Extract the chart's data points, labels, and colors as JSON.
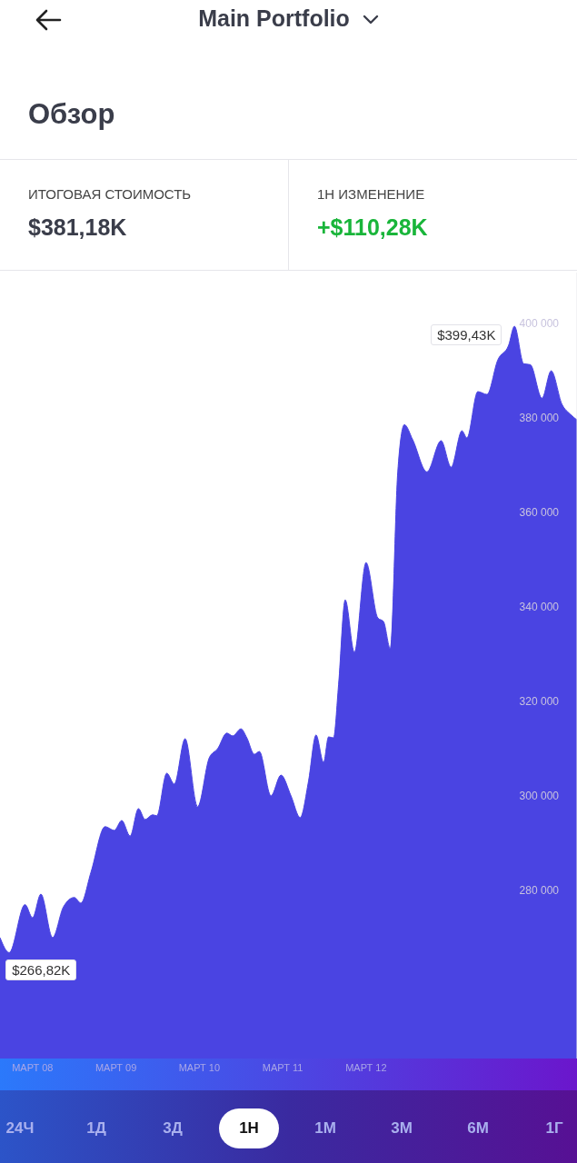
{
  "chart_data": {
    "type": "area",
    "title": "Main Portfolio",
    "subtitle": "Обзор",
    "annotations": [
      "ИТОГОВАЯ СТОИМОСТЬ",
      "$381,18K",
      "1Н ИЗМЕНЕНИЕ",
      "+$110,28K",
      "24Ч",
      "1Д",
      "3Д",
      "1Н",
      "1М",
      "3М",
      "6М",
      "1Г",
      {
        "text": "$399,43K",
        "x": "--03-13T18:43",
        "y": 399430
      },
      {
        "text": "$266,82K",
        "x": "--03-07T17:17",
        "y": 266820
      }
    ],
    "x": [
      "--03-07T14:38",
      "--03-07T17:17",
      "--03-07T21:50",
      "--03-08T00:00",
      "--03-08T02:24",
      "--03-08T05:46",
      "--03-08T08:53",
      "--03-08T12:00",
      "--03-08T13:55",
      "--03-08T16:48",
      "--03-08T20:53",
      "--03-08T23:31",
      "--03-09T01:41",
      "--03-09T04:05",
      "--03-09T06:29",
      "--03-09T08:24",
      "--03-09T10:34",
      "--03-09T11:46",
      "--03-09T14:38",
      "--03-09T16:48",
      "--03-09T19:55",
      "--03-09T23:31",
      "--03-10T02:53",
      "--03-10T05:17",
      "--03-10T07:55",
      "--03-10T09:36",
      "--03-10T12:00",
      "--03-10T13:41",
      "--03-10T15:50",
      "--03-10T17:17",
      "--03-10T20:38",
      "--03-10T23:31",
      "--03-11T02:24",
      "--03-11T05:02",
      "--03-11T07:26",
      "--03-11T09:36",
      "--03-11T11:46",
      "--03-11T13:12",
      "--03-11T14:38",
      "--03-11T16:05",
      "--03-11T18:00",
      "--03-11T20:38",
      "--03-12T00:00",
      "--03-12T03:22",
      "--03-12T05:02",
      "--03-12T06:58",
      "--03-12T09:07",
      "--03-12T11:02",
      "--03-12T13:26",
      "--03-12T17:31",
      "--03-12T21:36",
      "--03-13T00:29",
      "--03-13T03:36",
      "--03-13T05:02",
      "--03-13T08:10",
      "--03-13T10:48",
      "--03-13T13:55",
      "--03-13T17:02",
      "--03-13T18:43",
      "--03-13T21:22",
      "--03-13T23:17",
      "--03-14T02:38",
      "--03-14T05:17",
      "--03-14T08:24",
      "--03-14T10:48",
      "--03-14T12:43"
    ],
    "series": [
      {
        "color": "#4a44e2",
        "values": [
          270000,
          266820,
          277000,
          274200,
          279200,
          270000,
          276500,
          278500,
          277300,
          283800,
          293500,
          292700,
          294800,
          291500,
          297300,
          295000,
          296000,
          295800,
          304800,
          302500,
          312100,
          297700,
          308100,
          310000,
          313300,
          312700,
          314200,
          312300,
          308800,
          309400,
          300000,
          304400,
          300000,
          295400,
          303100,
          312900,
          307100,
          312500,
          312300,
          323500,
          341500,
          330400,
          349400,
          337700,
          336900,
          331200,
          368500,
          378600,
          375400,
          368600,
          375200,
          369600,
          377300,
          375800,
          385600,
          385000,
          392300,
          395400,
          399430,
          391500,
          391300,
          384200,
          390000,
          382900,
          380800,
          379600
        ]
      }
    ],
    "xlim": [
      "--03-07T14:38",
      "--03-14T12:43"
    ],
    "xticks": [
      {
        "value": "--03-08",
        "label": "МАРТ 08"
      },
      {
        "value": "--03-09",
        "label": "МАРТ 09"
      },
      {
        "value": "--03-10",
        "label": "МАРТ 10"
      },
      {
        "value": "--03-11",
        "label": "МАРТ 11"
      },
      {
        "value": "--03-12",
        "label": "МАРТ 12"
      }
    ],
    "ylim": [
      244400,
      410800
    ],
    "yticks": [
      {
        "value": 280000,
        "label": "280 000"
      },
      {
        "value": 300000,
        "label": "300 000"
      },
      {
        "value": 320000,
        "label": "320 000"
      },
      {
        "value": 340000,
        "label": "340 000"
      },
      {
        "value": 360000,
        "label": "360 000"
      },
      {
        "value": 380000,
        "label": "380 000"
      },
      {
        "value": 400000,
        "label": "400 000"
      }
    ]
  }
}
